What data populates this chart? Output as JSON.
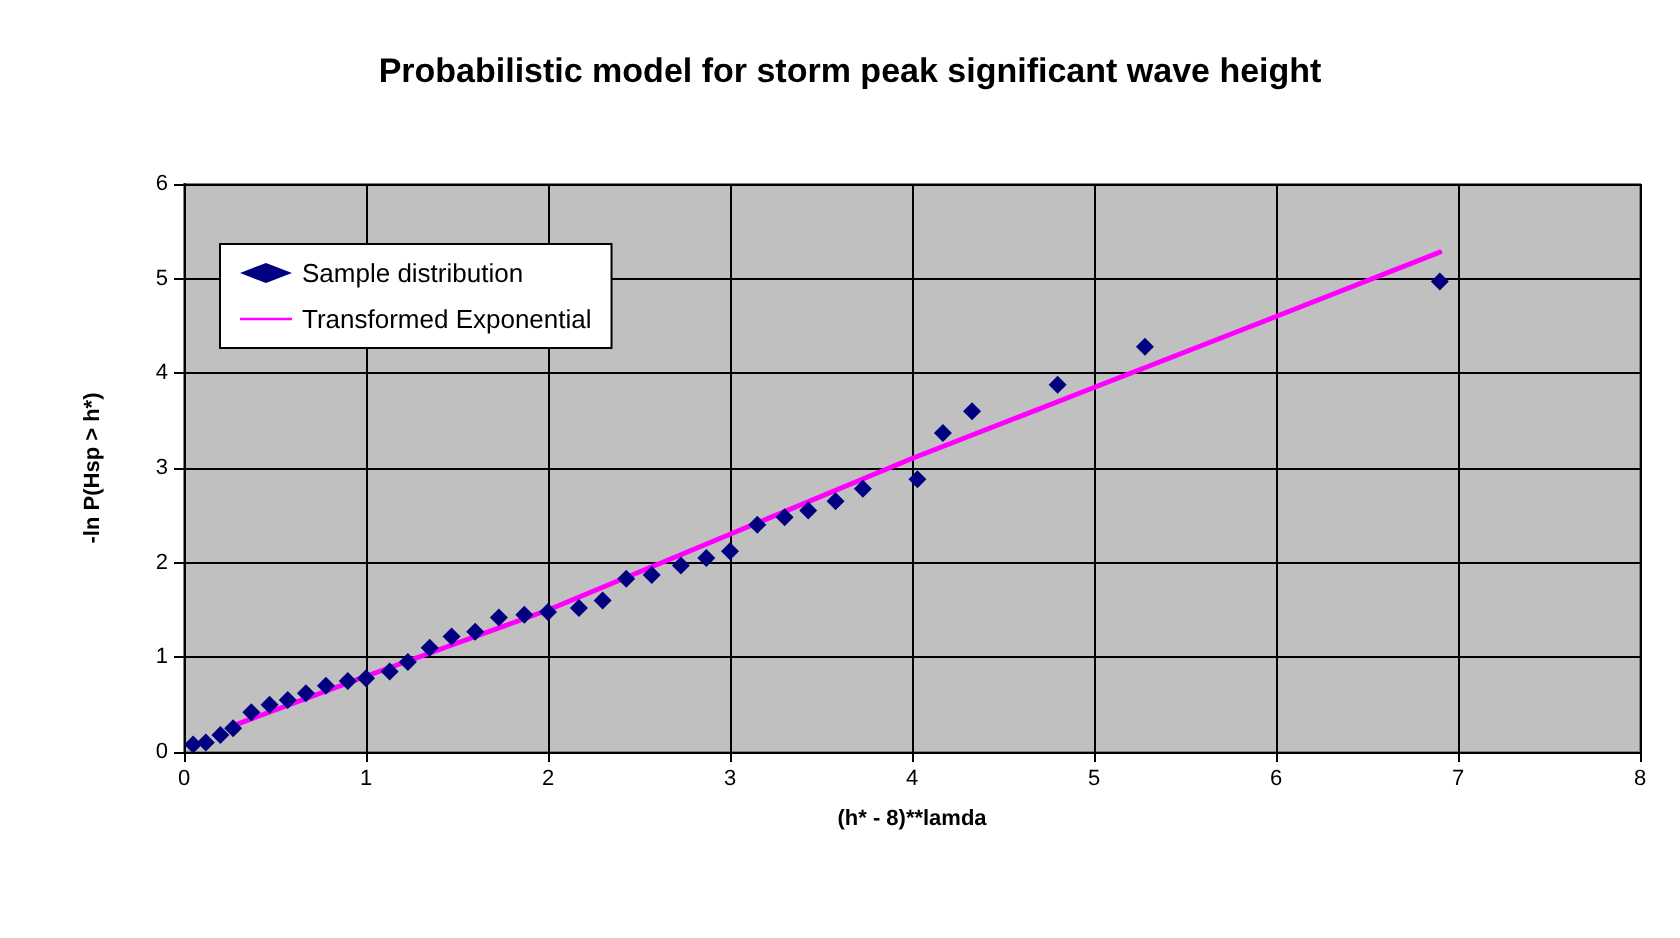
{
  "chart_data": {
    "type": "scatter",
    "title": "Probabilistic model for storm peak significant wave height",
    "xlabel": "(h* - 8)**lamda",
    "ylabel": "-ln P(Hsp > h*)",
    "xlim": [
      0,
      8
    ],
    "xticks": [
      0,
      1,
      2,
      3,
      4,
      5,
      6,
      7,
      8
    ],
    "ylim": [
      0,
      6
    ],
    "yticks": [
      0,
      1,
      2,
      3,
      4,
      5,
      6
    ],
    "grid": true,
    "legend": "top left",
    "series": [
      {
        "name": "Sample distribution",
        "marker": "diamond",
        "color": "#000080",
        "x": [
          0.05,
          0.12,
          0.2,
          0.27,
          0.37,
          0.47,
          0.57,
          0.67,
          0.78,
          0.9,
          1.0,
          1.13,
          1.23,
          1.35,
          1.47,
          1.6,
          1.73,
          1.87,
          2.0,
          2.17,
          2.3,
          2.43,
          2.57,
          2.73,
          2.87,
          3.0,
          3.15,
          3.3,
          3.43,
          3.58,
          3.73,
          4.03,
          4.17,
          4.33,
          4.8,
          5.28,
          6.9
        ],
        "values": [
          0.08,
          0.1,
          0.18,
          0.25,
          0.42,
          0.5,
          0.55,
          0.62,
          0.7,
          0.75,
          0.78,
          0.85,
          0.95,
          1.1,
          1.22,
          1.27,
          1.42,
          1.45,
          1.48,
          1.52,
          1.6,
          1.83,
          1.87,
          1.97,
          2.05,
          2.12,
          2.4,
          2.48,
          2.55,
          2.65,
          2.78,
          2.88,
          3.37,
          3.6,
          3.88,
          4.28,
          4.97
        ]
      },
      {
        "name": "Transformed Exponential",
        "type": "line",
        "marker": "none",
        "line_style": "solid",
        "color": "#ff00ff",
        "x": [
          0.3,
          1,
          2,
          3,
          4,
          5,
          6,
          6.9
        ],
        "values": [
          0.3,
          0.8,
          1.5,
          2.3,
          3.1,
          3.85,
          4.6,
          5.28
        ]
      }
    ]
  }
}
